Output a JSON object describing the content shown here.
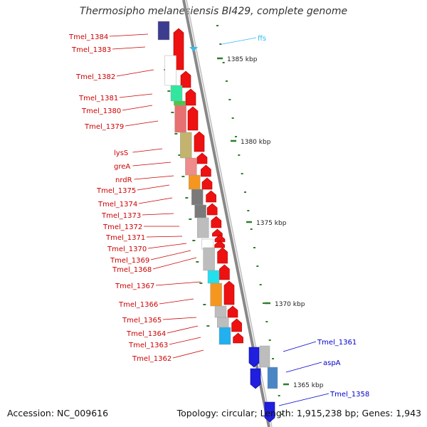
{
  "title": "Thermosipho melanesiensis BI429, complete genome",
  "footer": {
    "accession": "Accession: NC_009616",
    "topology": "Topology: circular; Length: 1,915,238 bp; Genes: 1,943"
  },
  "colors": {
    "forward_strand_label": "#cc0000",
    "reverse_strand_label": "#0000cc",
    "rna_label": "#33bbee",
    "backbone": "#888888",
    "tick": "#2e7d2e"
  },
  "ruler": {
    "unit": "kbp",
    "labels": [
      {
        "text": "1385 kbp",
        "kbp": 1385
      },
      {
        "text": "1380 kbp",
        "kbp": 1380
      },
      {
        "text": "1375 kbp",
        "kbp": 1375
      },
      {
        "text": "1370 kbp",
        "kbp": 1370
      },
      {
        "text": "1365 kbp",
        "kbp": 1365
      }
    ]
  },
  "genes": {
    "left": [
      {
        "label": "Tmel_1384",
        "color": "#3d3d8f"
      },
      {
        "label": "Tmel_1383",
        "color": "#ffffff"
      },
      {
        "label": "Tmel_1382",
        "color": "#33e6a0"
      },
      {
        "label": "Tmel_1381",
        "color": "#44cc44"
      },
      {
        "label": "Tmel_1380",
        "color": "#e87070"
      },
      {
        "label": "Tmel_1379",
        "color": "#c2b36e"
      },
      {
        "label": "lysS",
        "color": "#ee8c8c"
      },
      {
        "label": "greA",
        "color": "#f5961e"
      },
      {
        "label": "nrdR",
        "color": "#7a7a7a"
      },
      {
        "label": "Tmel_1375",
        "color": "#7a7a7a"
      },
      {
        "label": "Tmel_1374",
        "color": "#bdbdbd"
      },
      {
        "label": "Tmel_1373",
        "color": "#bdbdbd"
      },
      {
        "label": "Tmel_1372",
        "color": "#6b8e23"
      },
      {
        "label": "Tmel_1371",
        "color": "#ffffff"
      },
      {
        "label": "Tmel_1370",
        "color": "#bdbdbd"
      },
      {
        "label": "Tmel_1369",
        "color": "#22e0ee"
      },
      {
        "label": "Tmel_1368",
        "color": "#f5961e"
      },
      {
        "label": "Tmel_1367",
        "color": "#bdbdbd"
      },
      {
        "label": "Tmel_1366",
        "color": "#bdbdbd"
      },
      {
        "label": "Tmel_1365",
        "color": "#22b0ee"
      },
      {
        "label": "Tmel_1364",
        "color": "#bdbdbd"
      },
      {
        "label": "Tmel_1363",
        "color": "#1f1fdd"
      },
      {
        "label": "Tmel_1362",
        "color": "#1f1fdd"
      }
    ],
    "right": [
      {
        "label": "ffs",
        "color": "#33bbee"
      },
      {
        "label": "Tmel_1361",
        "color": "#4a86c5"
      },
      {
        "label": "aspA",
        "color": "#1f1fdd"
      },
      {
        "label": "Tmel_1358",
        "color": "#1f1fdd"
      }
    ]
  }
}
